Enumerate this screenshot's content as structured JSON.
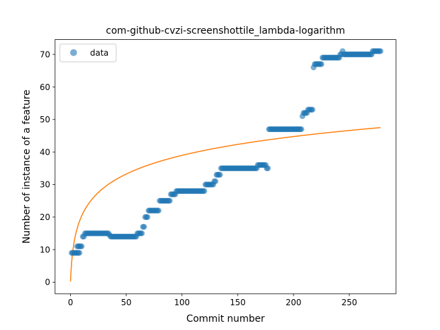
{
  "chart_data": {
    "type": "scatter",
    "title": "com-github-cvzi-screenshottile_lambda-logarithm",
    "xlabel": "Commit number",
    "ylabel": "Number of instance of a feature",
    "xlim": [
      -13.9,
      291.9
    ],
    "ylim": [
      -3.55,
      74.55
    ],
    "xticks": [
      0,
      50,
      100,
      150,
      200,
      250
    ],
    "yticks": [
      0,
      10,
      20,
      30,
      40,
      50,
      60,
      70
    ],
    "grid": false,
    "legend": {
      "location": "upper-left",
      "entries": [
        "data"
      ]
    },
    "colors": {
      "data": "#1f77b4",
      "fit": "#ff7f0e"
    },
    "series": [
      {
        "name": "data",
        "kind": "scatter",
        "steps": [
          [
            1,
            3,
            9
          ],
          [
            4,
            8,
            9
          ],
          [
            6,
            10,
            11
          ],
          [
            11,
            12,
            14
          ],
          [
            13,
            16,
            15
          ],
          [
            17,
            34,
            15
          ],
          [
            35,
            35,
            14.5
          ],
          [
            36,
            59,
            14
          ],
          [
            60,
            64,
            15
          ],
          [
            65,
            66,
            17
          ],
          [
            67,
            69,
            20
          ],
          [
            70,
            79,
            22
          ],
          [
            80,
            89,
            25
          ],
          [
            90,
            94,
            27
          ],
          [
            95,
            120,
            28
          ],
          [
            121,
            128,
            30
          ],
          [
            129,
            130,
            31
          ],
          [
            131,
            134,
            33
          ],
          [
            135,
            167,
            35
          ],
          [
            168,
            175,
            36
          ],
          [
            176,
            177,
            35
          ],
          [
            178,
            207,
            47
          ],
          [
            208,
            208,
            51
          ],
          [
            209,
            212,
            52
          ],
          [
            213,
            217,
            53
          ],
          [
            218,
            218,
            66
          ],
          [
            219,
            225,
            67
          ],
          [
            226,
            241,
            69
          ],
          [
            242,
            243,
            70
          ],
          [
            244,
            244,
            71
          ],
          [
            245,
            270,
            70
          ],
          [
            271,
            278,
            71
          ]
        ]
      },
      {
        "name": "fit",
        "kind": "line",
        "formula": "y = 0.2 + 8.4 * ln(x + 1)",
        "x_range": [
          0,
          278
        ]
      }
    ]
  }
}
